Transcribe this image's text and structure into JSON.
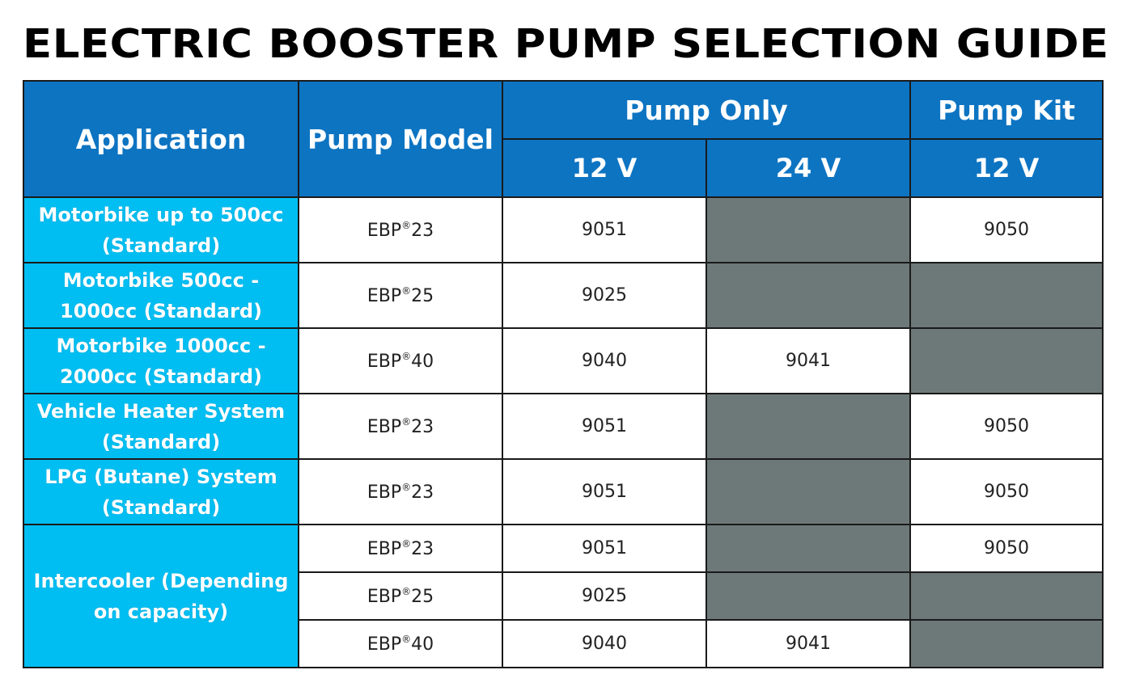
{
  "title": "ELECTRIC BOOSTER PUMP SELECTION GUIDE",
  "header": {
    "application": "Application",
    "pump_model": "Pump Model",
    "pump_only": "Pump Only",
    "pump_kit": "Pump Kit",
    "v12_only": "12 V",
    "v24_only": "24 V",
    "v12_kit": "12 V"
  },
  "registered_mark": "®",
  "rows": [
    {
      "application": "Motorbike up to 500cc (Standard)",
      "model_prefix": "EBP",
      "model_num": "23",
      "v12": "9051",
      "v24": "",
      "kit12": "9050"
    },
    {
      "application": "Motorbike 500cc - 1000cc (Standard)",
      "model_prefix": "EBP",
      "model_num": "25",
      "v12": "9025",
      "v24": "",
      "kit12": ""
    },
    {
      "application": "Motorbike 1000cc - 2000cc (Standard)",
      "model_prefix": "EBP",
      "model_num": "40",
      "v12": "9040",
      "v24": "9041",
      "kit12": ""
    },
    {
      "application": "Vehicle Heater System (Standard)",
      "model_prefix": "EBP",
      "model_num": "23",
      "v12": "9051",
      "v24": "",
      "kit12": "9050"
    },
    {
      "application": "LPG (Butane) System (Standard)",
      "model_prefix": "EBP",
      "model_num": "23",
      "v12": "9051",
      "v24": "",
      "kit12": "9050"
    },
    {
      "application": "Intercooler (Depending on capacity)",
      "model_prefix": "EBP",
      "model_num": "23",
      "v12": "9051",
      "v24": "",
      "kit12": "9050"
    },
    {
      "application": "",
      "model_prefix": "EBP",
      "model_num": "25",
      "v12": "9025",
      "v24": "",
      "kit12": ""
    },
    {
      "application": "",
      "model_prefix": "EBP",
      "model_num": "40",
      "v12": "9040",
      "v24": "9041",
      "kit12": ""
    }
  ],
  "colors": {
    "header_blue": "#0d74c2",
    "application_cyan": "#00bef2",
    "unavailable_gray": "#6d7978"
  }
}
